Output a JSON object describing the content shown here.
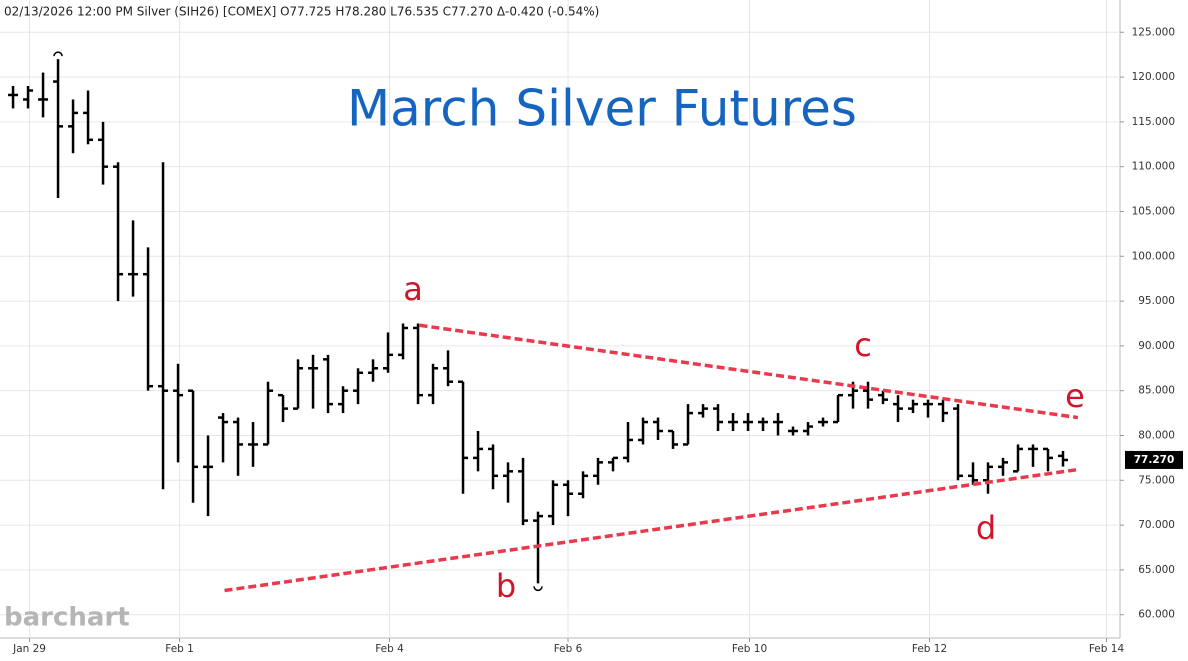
{
  "chart_data": {
    "type": "ohlc",
    "header": "02/13/2026 12:00 PM Silver (SIH26) [COMEX] O77.725 H78.280 L76.535 C77.270 Δ-0.420 (-0.54%)",
    "title": "March Silver Futures",
    "watermark": "barchart",
    "color": "#000000",
    "title_color": "#1565c0",
    "trend_color": "#e8394d",
    "grid": true,
    "open": [
      118,
      117.5,
      117.5,
      119.5,
      114.5,
      116,
      113,
      110,
      98,
      98,
      85.5,
      85,
      85,
      76.5,
      82,
      81.5,
      79,
      79,
      84.5,
      83,
      87.5,
      88.5,
      83.5,
      85,
      87,
      87.5,
      89,
      92,
      84.5,
      87.5,
      86,
      77.5,
      78.5,
      75.5,
      76,
      70.5,
      71,
      74.5,
      73.5,
      75.5,
      77,
      77.5,
      79.5,
      81.5,
      80.5,
      79,
      82.5,
      83,
      81.5,
      81.5,
      81.5,
      81.5,
      80.5,
      80.5,
      81.5,
      81.5,
      84.5,
      85,
      84.5,
      83.5,
      83,
      83.5,
      83.5,
      83,
      75.5,
      75,
      76.5,
      76,
      78.5,
      78.5,
      77.725
    ],
    "high": [
      119,
      119,
      120.5,
      122,
      117.5,
      118.5,
      115,
      110.5,
      104,
      101,
      110.5,
      88,
      85,
      80,
      82.5,
      82,
      81.5,
      86,
      84.5,
      88.5,
      89,
      89,
      85.5,
      87.5,
      88.5,
      91.5,
      92.5,
      92.5,
      88,
      89.5,
      86,
      80.5,
      79,
      77,
      77.5,
      71.5,
      75,
      75,
      76,
      77.5,
      77.5,
      81.5,
      82,
      82,
      80.5,
      83.5,
      83.5,
      83.5,
      82.5,
      82.5,
      82,
      82.5,
      81,
      81.5,
      82,
      84.5,
      86,
      86,
      85,
      84.5,
      84,
      84,
      84,
      83.5,
      77,
      77,
      77.5,
      79,
      79,
      78.5,
      78.28
    ],
    "low": [
      116.5,
      116.5,
      115.5,
      106.5,
      111.5,
      112.5,
      108,
      95,
      95.5,
      85,
      74,
      77,
      72.5,
      71,
      77,
      75.5,
      76.5,
      79,
      81.5,
      83,
      83,
      82.5,
      82.5,
      83.5,
      86,
      87,
      88.5,
      83.5,
      83.5,
      85.5,
      73.5,
      76,
      74,
      72.5,
      70,
      63.5,
      70,
      71,
      73,
      74.5,
      76,
      77,
      79,
      79.5,
      78.5,
      79,
      82,
      80.5,
      80.5,
      80.5,
      80.5,
      80,
      80,
      80,
      81,
      81.5,
      83,
      83,
      83.5,
      81.5,
      82.5,
      82,
      81.5,
      75,
      74.5,
      73.5,
      75.5,
      76,
      76.5,
      76,
      76.535
    ],
    "close": [
      118,
      118.5,
      117.5,
      114.5,
      116,
      113,
      110,
      98,
      98,
      85.5,
      85,
      84.5,
      76.5,
      76.5,
      81.5,
      79,
      79,
      85,
      83,
      87.5,
      87.5,
      83.5,
      85,
      87,
      87.5,
      89,
      92,
      84.5,
      87.5,
      86,
      77.5,
      78.5,
      75.5,
      76,
      70.5,
      71,
      74.5,
      73.5,
      75.5,
      77,
      77.5,
      79.5,
      81.5,
      80.5,
      79,
      82.5,
      83,
      81.5,
      81.5,
      81.5,
      81.5,
      81.5,
      80.5,
      81,
      81.5,
      84.5,
      85,
      84,
      84,
      83,
      83.5,
      83.5,
      82.5,
      75.5,
      75,
      76.5,
      77,
      78.5,
      78.5,
      77.5,
      77.27
    ],
    "last_price": {
      "value": 77.27,
      "label": "77.270"
    },
    "trendlines": [
      {
        "x": [
          27.1,
          71
        ],
        "y": [
          92.3,
          82
        ]
      },
      {
        "x": [
          14.1,
          71
        ],
        "y": [
          62.7,
          76.2
        ]
      }
    ],
    "annotations": [
      "a",
      "b",
      "c",
      "d",
      "e"
    ],
    "xlim": [
      -0.87,
      73.8
    ],
    "xticks": [
      {
        "value": 1.1,
        "label": "Jan 29"
      },
      {
        "value": 11.1,
        "label": "Feb 1"
      },
      {
        "value": 25.1,
        "label": "Feb 4"
      },
      {
        "value": 37,
        "label": "Feb 6"
      },
      {
        "value": 49.1,
        "label": "Feb 10"
      },
      {
        "value": 61.1,
        "label": "Feb 12"
      },
      {
        "value": 72.9,
        "label": "Feb 14"
      }
    ],
    "ylim": [
      57.4,
      128.6
    ],
    "yticks": [
      {
        "value": 60,
        "label": "60.000"
      },
      {
        "value": 65,
        "label": "65.000"
      },
      {
        "value": 70,
        "label": "70.000"
      },
      {
        "value": 75,
        "label": "75.000"
      },
      {
        "value": 80,
        "label": "80.000"
      },
      {
        "value": 85,
        "label": "85.000"
      },
      {
        "value": 90,
        "label": "90.000"
      },
      {
        "value": 95,
        "label": "95.000"
      },
      {
        "value": 100,
        "label": "100.000"
      },
      {
        "value": 105,
        "label": "105.000"
      },
      {
        "value": 110,
        "label": "110.000"
      },
      {
        "value": 115,
        "label": "115.000"
      },
      {
        "value": 120,
        "label": "120.000"
      },
      {
        "value": 125,
        "label": "125.000"
      }
    ]
  }
}
